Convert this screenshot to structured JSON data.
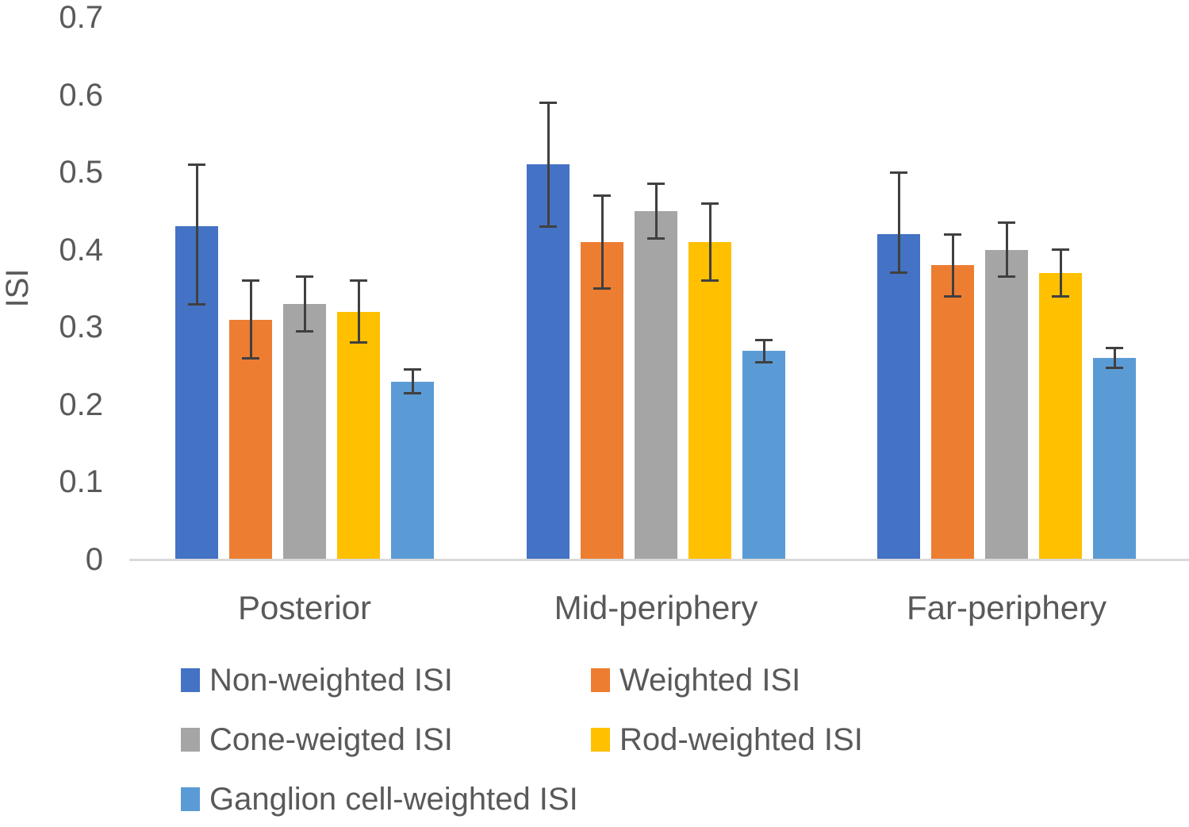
{
  "chart_data": {
    "type": "bar",
    "title": "",
    "ylabel": "ISI",
    "xlabel": "",
    "ylim": [
      0,
      0.7
    ],
    "ytick_labels": [
      "0",
      "0.1",
      "0.2",
      "0.3",
      "0.4",
      "0.5",
      "0.6",
      "0.7"
    ],
    "ytick_values": [
      0,
      0.1,
      0.2,
      0.3,
      0.4,
      0.5,
      0.6,
      0.7
    ],
    "grid": false,
    "legend_position": "bottom",
    "categories": [
      "Posterior",
      "Mid-periphery",
      "Far-periphery"
    ],
    "series": [
      {
        "name": "Non-weighted ISI",
        "color": "#4472C4",
        "values": [
          0.43,
          0.51,
          0.42
        ],
        "error_low": [
          0.33,
          0.43,
          0.37
        ],
        "error_high": [
          0.51,
          0.59,
          0.5
        ]
      },
      {
        "name": "Weighted ISI",
        "color": "#ED7D31",
        "values": [
          0.31,
          0.41,
          0.38
        ],
        "error_low": [
          0.26,
          0.35,
          0.34
        ],
        "error_high": [
          0.36,
          0.47,
          0.42
        ]
      },
      {
        "name": "Cone-weigted ISI",
        "color": "#A5A5A5",
        "values": [
          0.33,
          0.45,
          0.4
        ],
        "error_low": [
          0.295,
          0.415,
          0.365
        ],
        "error_high": [
          0.365,
          0.485,
          0.435
        ]
      },
      {
        "name": "Rod-weighted ISI",
        "color": "#FFC000",
        "values": [
          0.32,
          0.41,
          0.37
        ],
        "error_low": [
          0.28,
          0.36,
          0.34
        ],
        "error_high": [
          0.36,
          0.46,
          0.4
        ]
      },
      {
        "name": "Ganglion cell-weighted ISI",
        "color": "#5B9BD5",
        "values": [
          0.23,
          0.27,
          0.26
        ],
        "error_low": [
          0.215,
          0.255,
          0.248
        ],
        "error_high": [
          0.245,
          0.283,
          0.273
        ]
      }
    ],
    "error_bar_color": "#404040",
    "axis_line_color": "#D9D9D9",
    "text_color": "#595959"
  }
}
